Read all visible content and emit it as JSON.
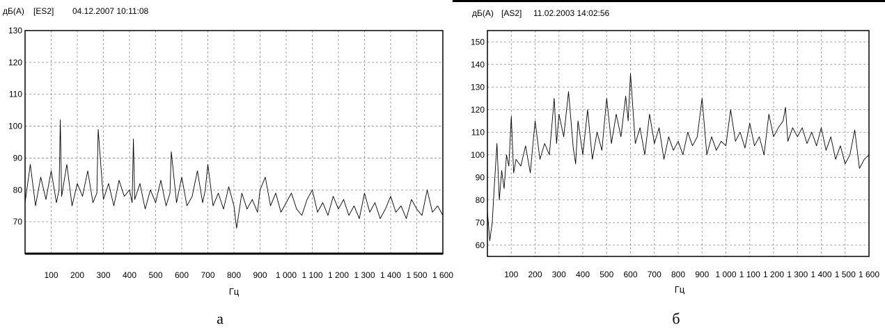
{
  "chart_data": [
    {
      "type": "line",
      "unit_label": "дБ(А)",
      "channel": "[ES2]",
      "timestamp": "04.12.2007 10:11:08",
      "xlabel": "Гц",
      "caption": "а",
      "xlim": [
        0,
        1600
      ],
      "ylim": [
        60,
        130
      ],
      "x_ticks": [
        "100",
        "200",
        "300",
        "400",
        "500",
        "600",
        "700",
        "800",
        "900",
        "1 000",
        "1 100",
        "1 200",
        "1 300",
        "1 400",
        "1 500",
        "1 600"
      ],
      "y_ticks": [
        "70",
        "80",
        "90",
        "100",
        "110",
        "120",
        "130"
      ],
      "grid": true,
      "series": [
        {
          "x": [
            0,
            20,
            40,
            60,
            80,
            100,
            120,
            130,
            135,
            140,
            160,
            180,
            200,
            220,
            240,
            260,
            275,
            280,
            300,
            320,
            340,
            360,
            380,
            400,
            410,
            415,
            420,
            440,
            460,
            480,
            500,
            520,
            540,
            555,
            560,
            580,
            600,
            620,
            640,
            660,
            680,
            690,
            700,
            720,
            740,
            760,
            780,
            800,
            810,
            830,
            850,
            870,
            890,
            900,
            920,
            940,
            960,
            980,
            1000,
            1020,
            1040,
            1060,
            1080,
            1100,
            1120,
            1140,
            1160,
            1180,
            1200,
            1220,
            1240,
            1260,
            1280,
            1300,
            1320,
            1340,
            1360,
            1380,
            1400,
            1420,
            1440,
            1460,
            1480,
            1500,
            1520,
            1540,
            1560,
            1580,
            1600
          ],
          "y": [
            76,
            88,
            75,
            84,
            77,
            86,
            76,
            80,
            102,
            78,
            88,
            75,
            82,
            78,
            86,
            76,
            79,
            99,
            77,
            82,
            75,
            83,
            78,
            80,
            76,
            96,
            77,
            82,
            74,
            80,
            76,
            83,
            75,
            79,
            92,
            76,
            84,
            75,
            78,
            86,
            76,
            80,
            88,
            75,
            79,
            74,
            81,
            75,
            68,
            79,
            74,
            77,
            73,
            80,
            84,
            75,
            79,
            73,
            76,
            79,
            74,
            72,
            77,
            80,
            73,
            76,
            72,
            78,
            74,
            77,
            72,
            75,
            71,
            79,
            73,
            76,
            71,
            74,
            78,
            73,
            75,
            71,
            77,
            74,
            72,
            80,
            73,
            75,
            72
          ]
        }
      ]
    },
    {
      "type": "line",
      "unit_label": "дБ(А)",
      "channel": "[AS2]",
      "timestamp": "11.02.2003 14:02:56",
      "xlabel": "Гц",
      "caption": "б",
      "xlim": [
        0,
        1600
      ],
      "ylim": [
        55,
        155
      ],
      "x_ticks": [
        "100",
        "200",
        "300",
        "400",
        "500",
        "600",
        "700",
        "800",
        "900",
        "1 000",
        "1 100",
        "1 200",
        "1 300",
        "1 400",
        "1 500",
        "1 600"
      ],
      "y_ticks": [
        "60",
        "70",
        "80",
        "90",
        "100",
        "110",
        "120",
        "130",
        "140",
        "150"
      ],
      "grid": true,
      "series": [
        {
          "x": [
            0,
            10,
            20,
            30,
            40,
            50,
            60,
            70,
            80,
            90,
            100,
            110,
            120,
            140,
            160,
            180,
            200,
            220,
            240,
            260,
            280,
            290,
            300,
            320,
            340,
            360,
            370,
            380,
            400,
            420,
            440,
            460,
            480,
            500,
            520,
            540,
            560,
            580,
            590,
            600,
            620,
            640,
            660,
            680,
            700,
            720,
            740,
            760,
            780,
            800,
            820,
            840,
            860,
            880,
            900,
            920,
            940,
            960,
            980,
            1000,
            1020,
            1040,
            1060,
            1080,
            1100,
            1120,
            1140,
            1160,
            1180,
            1200,
            1220,
            1240,
            1250,
            1260,
            1280,
            1300,
            1320,
            1340,
            1360,
            1380,
            1400,
            1420,
            1440,
            1460,
            1480,
            1500,
            1520,
            1540,
            1560,
            1580,
            1600
          ],
          "y": [
            75,
            62,
            70,
            88,
            105,
            80,
            93,
            85,
            100,
            95,
            117,
            92,
            98,
            95,
            104,
            92,
            115,
            98,
            105,
            100,
            125,
            105,
            118,
            108,
            128,
            103,
            96,
            115,
            100,
            120,
            98,
            110,
            102,
            125,
            105,
            118,
            108,
            126,
            115,
            136,
            105,
            112,
            100,
            118,
            105,
            112,
            98,
            108,
            102,
            106,
            100,
            110,
            104,
            108,
            125,
            100,
            108,
            102,
            106,
            104,
            120,
            106,
            110,
            103,
            114,
            104,
            108,
            100,
            118,
            108,
            112,
            115,
            121,
            106,
            112,
            108,
            112,
            105,
            110,
            104,
            112,
            102,
            108,
            98,
            104,
            96,
            100,
            111,
            94,
            98,
            100
          ]
        }
      ]
    }
  ]
}
